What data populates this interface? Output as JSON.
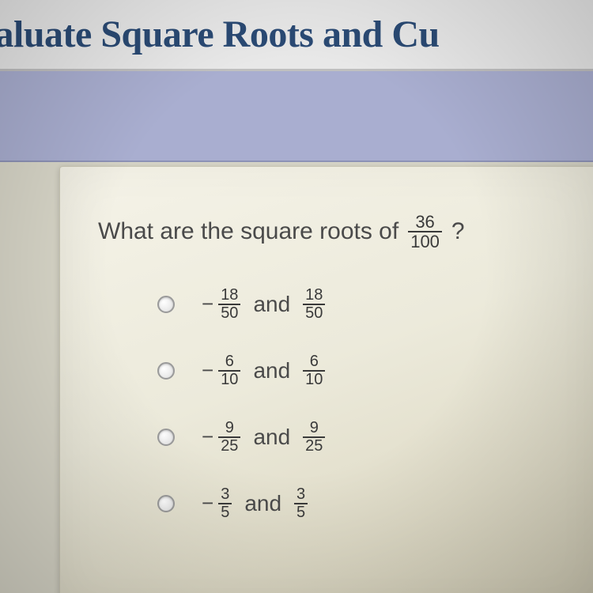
{
  "header": {
    "title": "valuate Square Roots and Cu"
  },
  "question": {
    "prefix": "What are the square roots of",
    "fraction": {
      "num": "36",
      "den": "100"
    },
    "suffix": "?"
  },
  "options": [
    {
      "neg": "−",
      "f1": {
        "num": "18",
        "den": "50"
      },
      "conj": "and",
      "f2": {
        "num": "18",
        "den": "50"
      }
    },
    {
      "neg": "−",
      "f1": {
        "num": "6",
        "den": "10"
      },
      "conj": "and",
      "f2": {
        "num": "6",
        "den": "10"
      }
    },
    {
      "neg": "−",
      "f1": {
        "num": "9",
        "den": "25"
      },
      "conj": "and",
      "f2": {
        "num": "9",
        "den": "25"
      }
    },
    {
      "neg": "−",
      "f1": {
        "num": "3",
        "den": "5"
      },
      "conj": "and",
      "f2": {
        "num": "3",
        "den": "5"
      }
    }
  ],
  "colors": {
    "header_text": "#2a4a74",
    "band": "#a9aed0",
    "card_bg": "#f0eee0",
    "text": "#4a4a4a"
  }
}
